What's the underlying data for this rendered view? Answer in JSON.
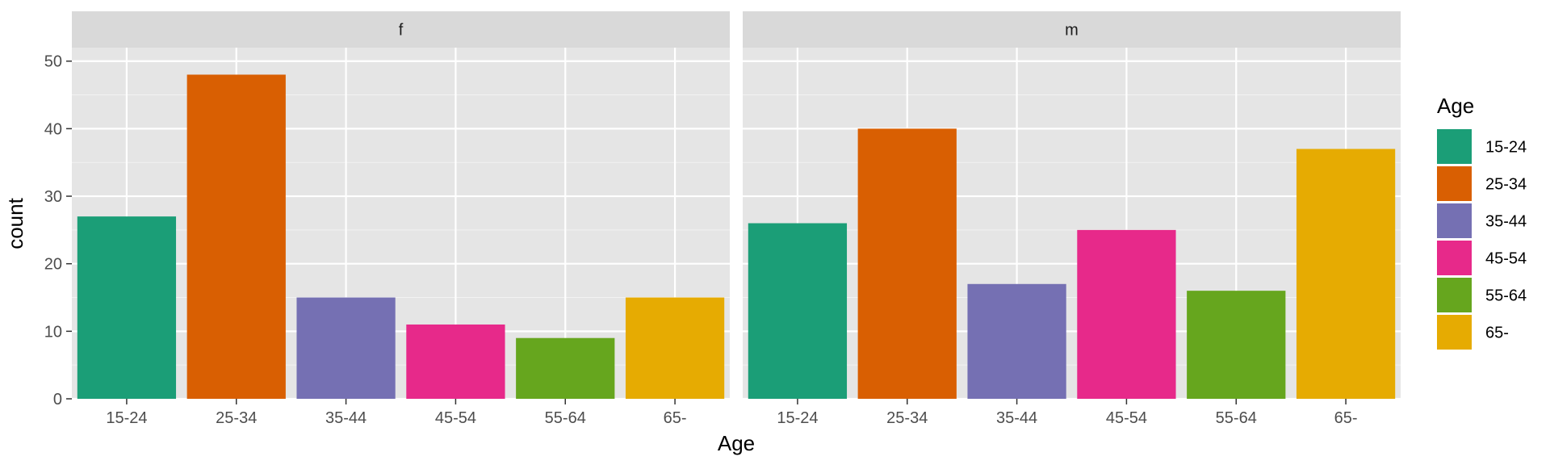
{
  "chart_data": {
    "type": "bar",
    "facets": [
      "f",
      "m"
    ],
    "categories": [
      "15-24",
      "25-34",
      "35-44",
      "45-54",
      "55-64",
      "65-"
    ],
    "series": [
      {
        "facet": "f",
        "values": [
          27,
          48,
          15,
          11,
          9,
          15
        ]
      },
      {
        "facet": "m",
        "values": [
          26,
          40,
          17,
          25,
          16,
          37
        ]
      }
    ],
    "colors": [
      "#1b9e77",
      "#d95f02",
      "#7570b3",
      "#e7298a",
      "#66a61e",
      "#e6ab02"
    ],
    "xlabel": "Age",
    "ylabel": "count",
    "ylim": [
      0,
      52
    ],
    "yticks": [
      0,
      10,
      20,
      30,
      40,
      50
    ],
    "grid": true,
    "legend": {
      "title": "Age",
      "position": "right"
    },
    "panel_background": "#e5e5e5",
    "strip_background": "#d9d9d9"
  }
}
